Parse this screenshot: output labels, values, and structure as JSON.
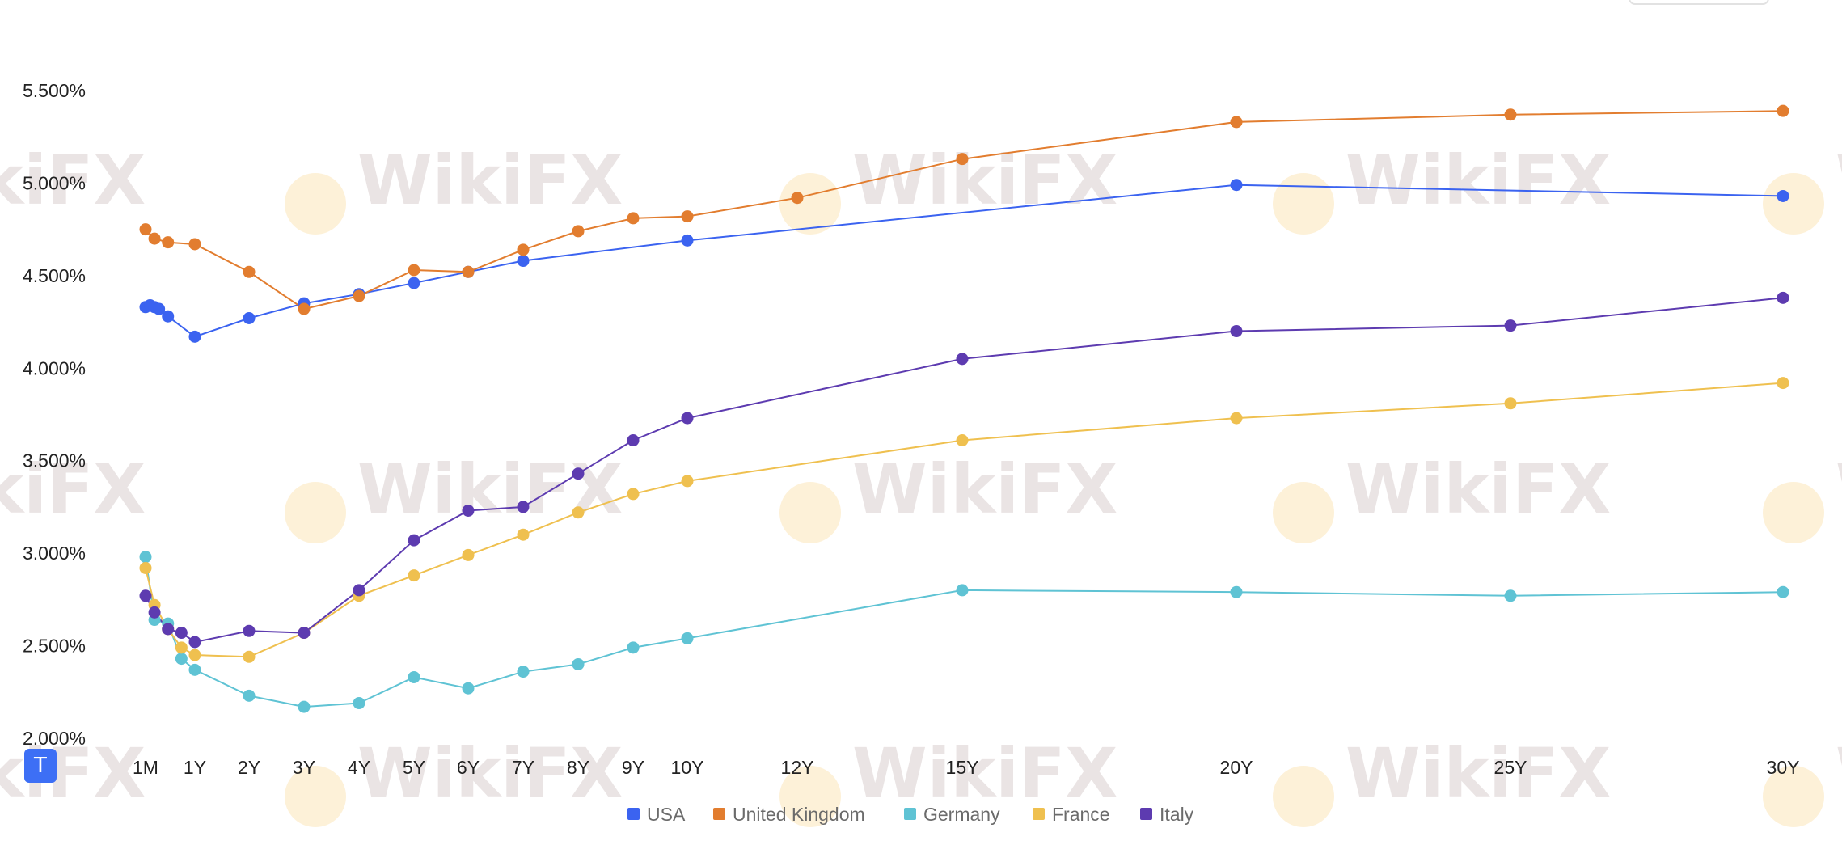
{
  "watermark": "WikiFX",
  "badge_label": "T",
  "chart_data": {
    "type": "line",
    "y_ticks": [
      "5.500%",
      "5.000%",
      "4.500%",
      "4.000%",
      "3.500%",
      "3.000%",
      "2.500%",
      "2.000%"
    ],
    "x_ticks": [
      "1M",
      "1Y",
      "2Y",
      "3Y",
      "4Y",
      "5Y",
      "6Y",
      "7Y",
      "8Y",
      "9Y",
      "10Y",
      "12Y",
      "15Y",
      "20Y",
      "25Y",
      "30Y"
    ],
    "ylim": [
      2.0,
      5.5
    ],
    "xlim_years": [
      0.0833,
      30
    ],
    "grid": false,
    "legend_position": "bottom-center",
    "series": [
      {
        "name": "USA",
        "color": "#3b63f0",
        "x": [
          0.0833,
          0.1667,
          0.25,
          0.3333,
          0.5,
          1,
          2,
          3,
          4,
          5,
          6,
          7,
          10,
          20,
          30
        ],
        "y": [
          4.33,
          4.34,
          4.33,
          4.32,
          4.28,
          4.17,
          4.27,
          4.35,
          4.4,
          4.46,
          4.52,
          4.58,
          4.69,
          4.99,
          4.93
        ]
      },
      {
        "name": "United Kingdom",
        "color": "#e27d2f",
        "x": [
          0.0833,
          0.25,
          0.5,
          1,
          2,
          3,
          4,
          5,
          6,
          7,
          8,
          9,
          10,
          12,
          15,
          20,
          25,
          30
        ],
        "y": [
          4.75,
          4.7,
          4.68,
          4.67,
          4.52,
          4.32,
          4.39,
          4.53,
          4.52,
          4.64,
          4.74,
          4.81,
          4.82,
          4.92,
          5.13,
          5.33,
          5.37,
          5.39
        ]
      },
      {
        "name": "Germany",
        "color": "#5fc3d4",
        "x": [
          0.0833,
          0.25,
          0.5,
          0.75,
          1,
          2,
          3,
          4,
          5,
          6,
          7,
          8,
          9,
          10,
          15,
          20,
          25,
          30
        ],
        "y": [
          2.98,
          2.64,
          2.62,
          2.43,
          2.37,
          2.23,
          2.17,
          2.19,
          2.33,
          2.27,
          2.36,
          2.4,
          2.49,
          2.54,
          2.8,
          2.79,
          2.77,
          2.79
        ]
      },
      {
        "name": "France",
        "color": "#efc04f",
        "x": [
          0.0833,
          0.25,
          0.5,
          0.75,
          1,
          2,
          3,
          4,
          5,
          6,
          7,
          8,
          9,
          10,
          15,
          20,
          25,
          30
        ],
        "y": [
          2.92,
          2.72,
          2.59,
          2.49,
          2.45,
          2.44,
          2.57,
          2.77,
          2.88,
          2.99,
          3.1,
          3.22,
          3.32,
          3.39,
          3.61,
          3.73,
          3.81,
          3.92
        ]
      },
      {
        "name": "Italy",
        "color": "#5d3bb0",
        "x": [
          0.0833,
          0.25,
          0.5,
          0.75,
          1,
          2,
          3,
          4,
          5,
          6,
          7,
          8,
          9,
          10,
          15,
          20,
          25,
          30
        ],
        "y": [
          2.77,
          2.68,
          2.59,
          2.57,
          2.52,
          2.58,
          2.57,
          2.8,
          3.07,
          3.23,
          3.25,
          3.43,
          3.61,
          3.73,
          4.05,
          4.2,
          4.23,
          4.38
        ]
      }
    ]
  }
}
